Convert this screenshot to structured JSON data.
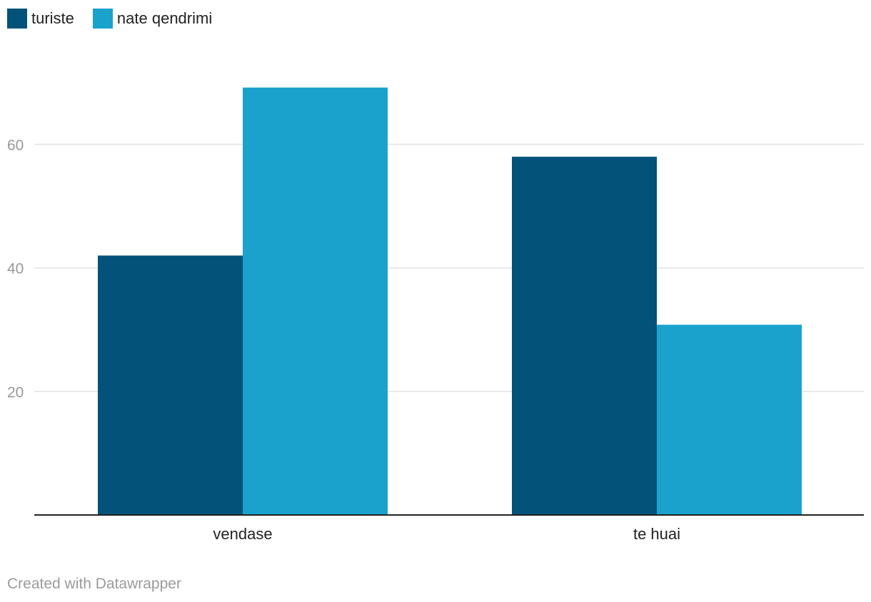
{
  "chart_data": {
    "type": "bar",
    "categories": [
      "vendase",
      "te huai"
    ],
    "series": [
      {
        "name": "turiste",
        "values": [
          42,
          58
        ],
        "color": "#03527a"
      },
      {
        "name": "nate qendrimi",
        "values": [
          69.2,
          30.8
        ],
        "color": "#1aa2cd"
      }
    ],
    "ylim": [
      0,
      80
    ],
    "yticks": [
      20,
      40,
      60
    ],
    "grid": true,
    "legend_position": "top-left"
  },
  "footer": {
    "credit": "Created with Datawrapper"
  }
}
